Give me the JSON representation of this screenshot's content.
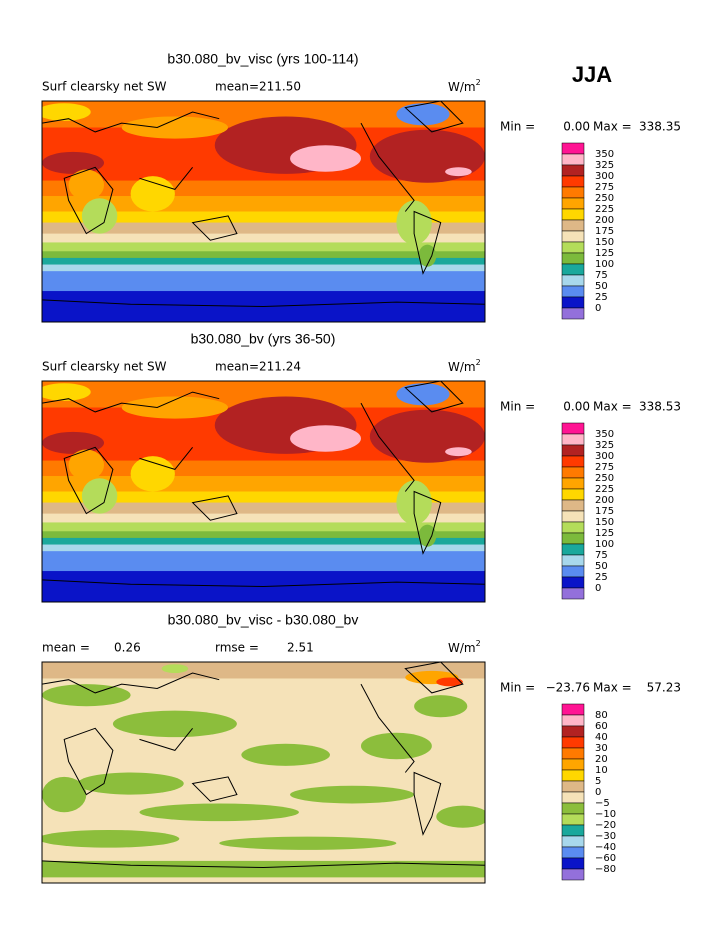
{
  "season": "JJA",
  "panels": [
    {
      "title": "b30.080_bv_visc (yrs 100-114)",
      "field": "Surf clearsky net SW",
      "stats": [
        {
          "label": "mean=",
          "value": "211.50"
        }
      ],
      "units": "W/m",
      "units_power": "2",
      "min_label": "Min =",
      "min": "0.00",
      "max_label": "Max =",
      "max": "338.35",
      "levels": [
        "350",
        "325",
        "300",
        "275",
        "250",
        "225",
        "200",
        "175",
        "150",
        "125",
        "100",
        "75",
        "50",
        "25",
        "0"
      ],
      "colors": [
        "#ff1493",
        "#ffb6c8",
        "#b22222",
        "#ff3a00",
        "#ff7a00",
        "#ffa500",
        "#ffd700",
        "#deb887",
        "#f5e2b8",
        "#b4dc5a",
        "#7cba3c",
        "#1aa89c",
        "#a8d8ec",
        "#5a8cf0",
        "#0a14c8",
        "#9370db"
      ],
      "map": "base"
    },
    {
      "title": "b30.080_bv (yrs 36-50)",
      "field": "Surf clearsky net SW",
      "stats": [
        {
          "label": "mean=",
          "value": "211.24"
        }
      ],
      "units": "W/m",
      "units_power": "2",
      "min_label": "Min =",
      "min": "0.00",
      "max_label": "Max =",
      "max": "338.53",
      "levels": [
        "350",
        "325",
        "300",
        "275",
        "250",
        "225",
        "200",
        "175",
        "150",
        "125",
        "100",
        "75",
        "50",
        "25",
        "0"
      ],
      "colors": [
        "#ff1493",
        "#ffb6c8",
        "#b22222",
        "#ff3a00",
        "#ff7a00",
        "#ffa500",
        "#ffd700",
        "#deb887",
        "#f5e2b8",
        "#b4dc5a",
        "#7cba3c",
        "#1aa89c",
        "#a8d8ec",
        "#5a8cf0",
        "#0a14c8",
        "#9370db"
      ],
      "map": "base"
    },
    {
      "title": "b30.080_bv_visc - b30.080_bv",
      "stats": [
        {
          "label": "mean =",
          "value": "0.26"
        },
        {
          "label": "rmse =",
          "value": "2.51"
        }
      ],
      "units": "W/m",
      "units_power": "2",
      "min_label": "Min =",
      "min": "−23.76",
      "max_label": "Max =",
      "max": "57.23",
      "levels": [
        "80",
        "60",
        "40",
        "30",
        "20",
        "10",
        "5",
        "0",
        "−5",
        "−10",
        "−20",
        "−30",
        "−40",
        "−60",
        "−80"
      ],
      "colors": [
        "#ff1493",
        "#ffb6c8",
        "#b22222",
        "#ff3a00",
        "#ff7a00",
        "#ffa500",
        "#ffd700",
        "#deb887",
        "#f5e2b8",
        "#8cbe3c",
        "#b4dc5a",
        "#1aa89c",
        "#a8d8ec",
        "#5a8cf0",
        "#0a14c8",
        "#9370db"
      ],
      "map": "diff"
    }
  ]
}
